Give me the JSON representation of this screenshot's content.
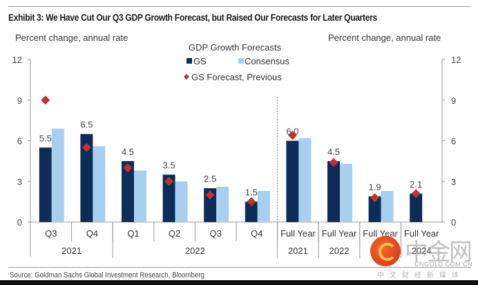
{
  "title": "Exhibit 3: We Have Cut Our Q3 GDP Growth Forecast, but Raised Our Forecasts for Later Quarters",
  "source": "Source: Goldman Sachs Global Investment Research, Bloomberg",
  "watermark": {
    "name": "中金网",
    "url": "CNGOLD.COM.CN",
    "tagline": "中文财经新媒体"
  },
  "colors": {
    "gs": "#0c2d57",
    "consensus": "#a8cff0",
    "previous": "#c0322d",
    "axis": "#999999"
  },
  "chart_data": {
    "type": "bar",
    "title": "Exhibit 3: We Have Cut Our Q3 GDP Growth Forecast, but Raised Our Forecasts for Later Quarters",
    "ylabel_left": "Percent change, annual rate",
    "ylabel_right": "Percent change, annual rate",
    "legend_title": "GDP Growth Forecasts",
    "legend_position": "top-center",
    "ylim": [
      0,
      12
    ],
    "yticks": [
      0,
      3,
      6,
      9,
      12
    ],
    "categories": [
      "Q3",
      "Q4",
      "Q1",
      "Q2",
      "Q3",
      "Q4",
      "Full Year",
      "Full Year",
      "Full Year",
      "Full Year"
    ],
    "groups": [
      {
        "label": "2021",
        "span": 2
      },
      {
        "label": "2022",
        "span": 4
      },
      {
        "label": "2021",
        "span": 1
      },
      {
        "label": "2022",
        "span": 1
      },
      {
        "label": "2023",
        "span": 1
      },
      {
        "label": "2024",
        "span": 1
      }
    ],
    "divider_after_index": 5,
    "series": [
      {
        "name": "GS",
        "type": "bar",
        "values": [
          5.5,
          6.5,
          4.5,
          3.5,
          2.5,
          1.5,
          6.0,
          4.5,
          1.9,
          2.1
        ],
        "labels": [
          "5.5",
          "6.5",
          "4.5",
          "3.5",
          "2.5",
          "1.5",
          "6.0",
          "4.5",
          "1.9",
          "2.1"
        ]
      },
      {
        "name": "Consensus",
        "type": "bar",
        "values": [
          6.9,
          5.6,
          3.8,
          3.0,
          2.6,
          2.3,
          6.2,
          4.3,
          2.3,
          null
        ]
      },
      {
        "name": "GS Forecast, Previous",
        "type": "marker",
        "values": [
          9.0,
          5.5,
          4.0,
          3.0,
          2.0,
          1.5,
          6.4,
          4.4,
          1.8,
          2.1
        ]
      }
    ]
  }
}
